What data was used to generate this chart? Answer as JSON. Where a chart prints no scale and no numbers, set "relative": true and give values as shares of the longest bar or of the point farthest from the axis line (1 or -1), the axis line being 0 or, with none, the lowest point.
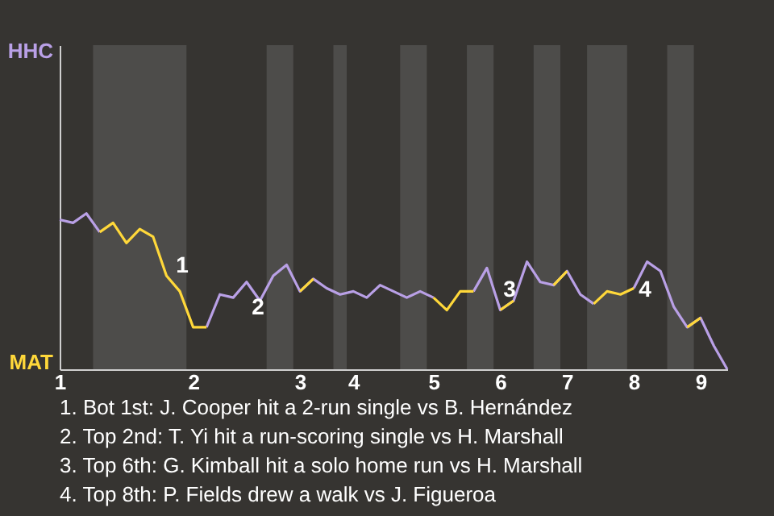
{
  "chart_data": {
    "type": "line",
    "relative": true,
    "categories": [
      "1",
      null,
      null,
      null,
      null,
      null,
      null,
      null,
      null,
      null,
      "2",
      null,
      null,
      null,
      null,
      null,
      null,
      null,
      "3",
      null,
      null,
      null,
      "4",
      null,
      null,
      null,
      null,
      null,
      "5",
      null,
      null,
      null,
      null,
      "6",
      null,
      null,
      null,
      null,
      "7",
      null,
      null,
      null,
      null,
      "8",
      null,
      null,
      null,
      null,
      "9",
      null,
      null
    ],
    "series": [
      {
        "color": "#b9a0e6",
        "values": [
          0.96,
          0.94,
          1,
          0.88,
          null,
          null,
          null,
          null,
          null,
          null,
          null,
          0.27,
          0.48,
          0.46,
          0.56,
          0.44,
          0.6,
          0.67,
          0.5,
          0.58,
          0.52,
          0.48,
          0.5,
          0.46,
          0.54,
          0.5,
          0.46,
          0.5,
          0.46,
          null,
          null,
          0.5,
          0.65,
          0.38,
          0.44,
          0.69,
          0.56,
          0.54,
          0.63,
          0.48,
          0.42,
          null,
          null,
          0.52,
          0.69,
          0.63,
          0.4,
          0.27,
          0.33,
          0.15,
          0
        ]
      },
      {
        "color": "#ffd83a",
        "values": [
          null,
          null,
          null,
          0.88,
          0.94,
          0.81,
          0.9,
          0.85,
          0.6,
          0.5,
          0.27,
          0.27,
          null,
          null,
          null,
          null,
          null,
          null,
          0.5,
          0.58,
          null,
          null,
          null,
          null,
          null,
          null,
          null,
          null,
          0.46,
          0.38,
          0.5,
          0.5,
          null,
          0.38,
          0.44,
          null,
          null,
          0.54,
          0.63,
          null,
          0.42,
          0.5,
          0.48,
          0.52,
          null,
          null,
          null,
          0.27,
          0.33,
          null,
          null
        ]
      }
    ],
    "tick_labels": "x",
    "marker": "none",
    "line_style": "solid",
    "annotations": [
      "HHC",
      "MAT",
      "1",
      "2",
      "3",
      "4",
      "1. Bot 1st: J. Cooper hit a 2-run single vs B. Hernández",
      "2. Top 2nd: T. Yi hit a run-scoring single vs H. Marshall",
      "3. Top 6th: G. Kimball hit a solo home run vs H. Marshall",
      "4. Top 8th: P. Fields drew a walk vs J. Figueroa"
    ]
  }
}
